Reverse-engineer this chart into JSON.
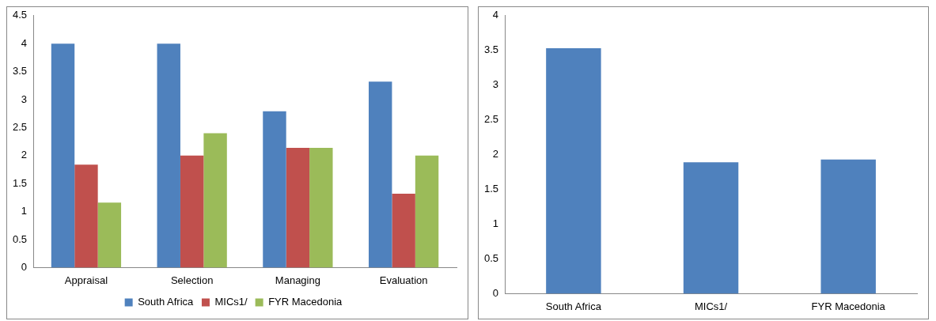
{
  "chart_data": [
    {
      "type": "bar",
      "categories": [
        "Appraisal",
        "Selection",
        "Managing",
        "Evaluation"
      ],
      "series": [
        {
          "name": "South Africa",
          "color": "#4f81bd",
          "values": [
            4,
            4,
            2.79,
            3.32
          ]
        },
        {
          "name": "MICs1/",
          "color": "#c0504d",
          "values": [
            1.84,
            2,
            2.14,
            1.32
          ]
        },
        {
          "name": "FYR Macedonia",
          "color": "#9bbb59",
          "values": [
            1.16,
            2.4,
            2.14,
            2
          ]
        }
      ],
      "ylim": [
        0,
        4.5
      ],
      "yticks": [
        0,
        0.5,
        1,
        1.5,
        2,
        2.5,
        3,
        3.5,
        4,
        4.5
      ],
      "grid": false,
      "legend": "bottom"
    },
    {
      "type": "bar",
      "categories": [
        "South Africa",
        "MICs1/",
        "FYR Macedonia"
      ],
      "series": [
        {
          "color": "#4f81bd",
          "values": [
            3.53,
            1.89,
            1.93
          ]
        }
      ],
      "ylim": [
        0,
        4
      ],
      "yticks": [
        0,
        0.5,
        1,
        1.5,
        2,
        2.5,
        3,
        3.5,
        4
      ],
      "grid": false,
      "legend": false
    }
  ]
}
